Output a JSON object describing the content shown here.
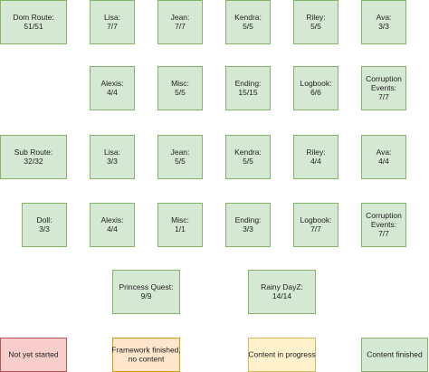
{
  "nodes": [
    {
      "lines": [
        "Dom Route:",
        "51/51"
      ]
    },
    {
      "lines": [
        "Lisa:",
        "7/7"
      ]
    },
    {
      "lines": [
        "Jean:",
        "7/7"
      ]
    },
    {
      "lines": [
        "Kendra:",
        "5/5"
      ]
    },
    {
      "lines": [
        "Riley:",
        "5/5"
      ]
    },
    {
      "lines": [
        "Ava:",
        "3/3"
      ]
    },
    {
      "lines": [
        "Alexis:",
        "4/4"
      ]
    },
    {
      "lines": [
        "Misc:",
        "5/5"
      ]
    },
    {
      "lines": [
        "Ending:",
        "15/15"
      ]
    },
    {
      "lines": [
        "Logbook:",
        "6/6"
      ]
    },
    {
      "lines": [
        "Corruption",
        "Events:",
        "7/7"
      ]
    },
    {
      "lines": [
        "Sub Route:",
        "32/32"
      ]
    },
    {
      "lines": [
        "Lisa:",
        "3/3"
      ]
    },
    {
      "lines": [
        "Jean:",
        "5/5"
      ]
    },
    {
      "lines": [
        "Kendra:",
        "5/5"
      ]
    },
    {
      "lines": [
        "Riley:",
        "4/4"
      ]
    },
    {
      "lines": [
        "Ava:",
        "4/4"
      ]
    },
    {
      "lines": [
        "Doll:",
        "3/3"
      ]
    },
    {
      "lines": [
        "Alexis:",
        "4/4"
      ]
    },
    {
      "lines": [
        "Misc:",
        "1/1"
      ]
    },
    {
      "lines": [
        "Ending:",
        "3/3"
      ]
    },
    {
      "lines": [
        "Logbook:",
        "7/7"
      ]
    },
    {
      "lines": [
        "Corruption",
        "Events:",
        "7/7"
      ]
    },
    {
      "lines": [
        "Princess Quest:",
        "9/9"
      ]
    },
    {
      "lines": [
        "Rainy DayZ:",
        "14/14"
      ]
    }
  ],
  "legend": [
    {
      "lines": [
        "Not yet started"
      ]
    },
    {
      "lines": [
        "Framework finished,",
        "no content"
      ]
    },
    {
      "lines": [
        "Content in progress"
      ]
    },
    {
      "lines": [
        "Content finished"
      ]
    }
  ]
}
